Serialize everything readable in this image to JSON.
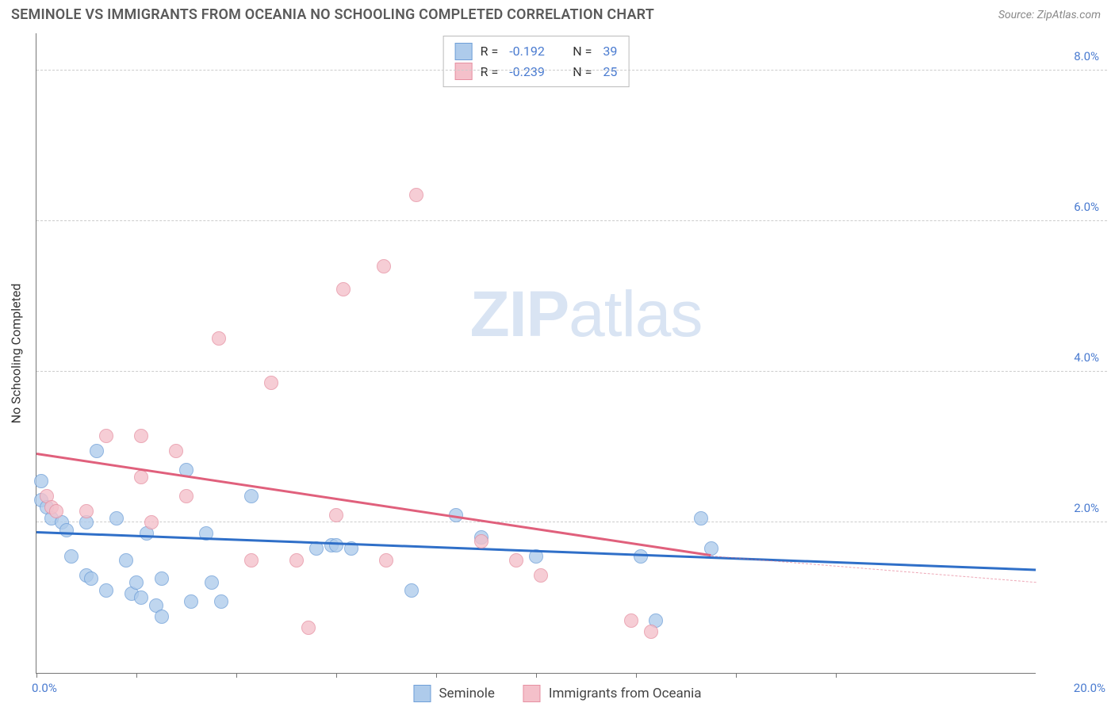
{
  "header": {
    "title": "SEMINOLE VS IMMIGRANTS FROM OCEANIA NO SCHOOLING COMPLETED CORRELATION CHART",
    "source": "Source: ZipAtlas.com"
  },
  "chart": {
    "type": "scatter",
    "ylabel": "No Schooling Completed",
    "xlim": [
      0,
      20
    ],
    "ylim": [
      0,
      8.5
    ],
    "y_gridlines": [
      2,
      4,
      6,
      8
    ],
    "y_tick_labels": [
      "2.0%",
      "4.0%",
      "6.0%",
      "8.0%"
    ],
    "x_tick_positions": [
      0,
      2,
      4,
      6,
      8,
      10,
      12,
      14,
      16
    ],
    "x_start_label": "0.0%",
    "x_end_label": "20.0%",
    "grid_color": "#cccccc",
    "background_color": "#ffffff",
    "watermark": {
      "bold": "ZIP",
      "rest": "atlas"
    },
    "series": [
      {
        "name": "Seminole",
        "color_fill": "#aecbeb",
        "color_stroke": "#6f9fd8",
        "trend_color": "#2f6fc8",
        "R": "-0.192",
        "N": "39",
        "trend": {
          "x1": 0.0,
          "y1": 1.85,
          "x2": 20.0,
          "y2": 1.35
        },
        "points": [
          {
            "x": 0.1,
            "y": 2.55
          },
          {
            "x": 0.1,
            "y": 2.3
          },
          {
            "x": 0.2,
            "y": 2.2
          },
          {
            "x": 0.3,
            "y": 2.05
          },
          {
            "x": 0.5,
            "y": 2.0
          },
          {
            "x": 0.6,
            "y": 1.9
          },
          {
            "x": 0.7,
            "y": 1.55
          },
          {
            "x": 1.0,
            "y": 2.0
          },
          {
            "x": 1.0,
            "y": 1.3
          },
          {
            "x": 1.1,
            "y": 1.25
          },
          {
            "x": 1.2,
            "y": 2.95
          },
          {
            "x": 1.4,
            "y": 1.1
          },
          {
            "x": 1.6,
            "y": 2.05
          },
          {
            "x": 1.8,
            "y": 1.5
          },
          {
            "x": 1.9,
            "y": 1.05
          },
          {
            "x": 2.0,
            "y": 1.2
          },
          {
            "x": 2.1,
            "y": 1.0
          },
          {
            "x": 2.2,
            "y": 1.85
          },
          {
            "x": 2.4,
            "y": 0.9
          },
          {
            "x": 2.5,
            "y": 1.25
          },
          {
            "x": 2.5,
            "y": 0.75
          },
          {
            "x": 3.0,
            "y": 2.7
          },
          {
            "x": 3.1,
            "y": 0.95
          },
          {
            "x": 3.4,
            "y": 1.85
          },
          {
            "x": 3.5,
            "y": 1.2
          },
          {
            "x": 3.7,
            "y": 0.95
          },
          {
            "x": 4.3,
            "y": 2.35
          },
          {
            "x": 5.6,
            "y": 1.65
          },
          {
            "x": 5.9,
            "y": 1.7
          },
          {
            "x": 6.0,
            "y": 1.7
          },
          {
            "x": 6.3,
            "y": 1.65
          },
          {
            "x": 7.5,
            "y": 1.1
          },
          {
            "x": 8.4,
            "y": 2.1
          },
          {
            "x": 8.9,
            "y": 1.8
          },
          {
            "x": 10.0,
            "y": 1.55
          },
          {
            "x": 12.1,
            "y": 1.55
          },
          {
            "x": 12.4,
            "y": 0.7
          },
          {
            "x": 13.3,
            "y": 2.05
          },
          {
            "x": 13.5,
            "y": 1.65
          }
        ]
      },
      {
        "name": "Immigrants from Oceania",
        "color_fill": "#f4c0ca",
        "color_stroke": "#e690a2",
        "trend_color": "#e0607c",
        "R": "-0.239",
        "N": "25",
        "trend": {
          "x1": 0.0,
          "y1": 2.9,
          "x2": 13.5,
          "y2": 1.55
        },
        "trend_dash": {
          "x1": 13.5,
          "y1": 1.55,
          "x2": 20.0,
          "y2": 1.2
        },
        "points": [
          {
            "x": 0.2,
            "y": 2.35
          },
          {
            "x": 0.3,
            "y": 2.2
          },
          {
            "x": 0.4,
            "y": 2.15
          },
          {
            "x": 1.0,
            "y": 2.15
          },
          {
            "x": 1.4,
            "y": 3.15
          },
          {
            "x": 2.1,
            "y": 3.15
          },
          {
            "x": 2.1,
            "y": 2.6
          },
          {
            "x": 2.3,
            "y": 2.0
          },
          {
            "x": 2.8,
            "y": 2.95
          },
          {
            "x": 3.0,
            "y": 2.35
          },
          {
            "x": 3.65,
            "y": 4.45
          },
          {
            "x": 4.3,
            "y": 1.5
          },
          {
            "x": 4.7,
            "y": 3.85
          },
          {
            "x": 5.2,
            "y": 1.5
          },
          {
            "x": 5.45,
            "y": 0.6
          },
          {
            "x": 6.0,
            "y": 2.1
          },
          {
            "x": 6.15,
            "y": 5.1
          },
          {
            "x": 6.95,
            "y": 5.4
          },
          {
            "x": 7.0,
            "y": 1.5
          },
          {
            "x": 7.6,
            "y": 6.35
          },
          {
            "x": 8.9,
            "y": 1.75
          },
          {
            "x": 9.6,
            "y": 1.5
          },
          {
            "x": 10.1,
            "y": 1.3
          },
          {
            "x": 11.9,
            "y": 0.7
          },
          {
            "x": 12.3,
            "y": 0.55
          }
        ]
      }
    ]
  },
  "legend": {
    "r_prefix": "R =",
    "n_prefix": "N ="
  }
}
